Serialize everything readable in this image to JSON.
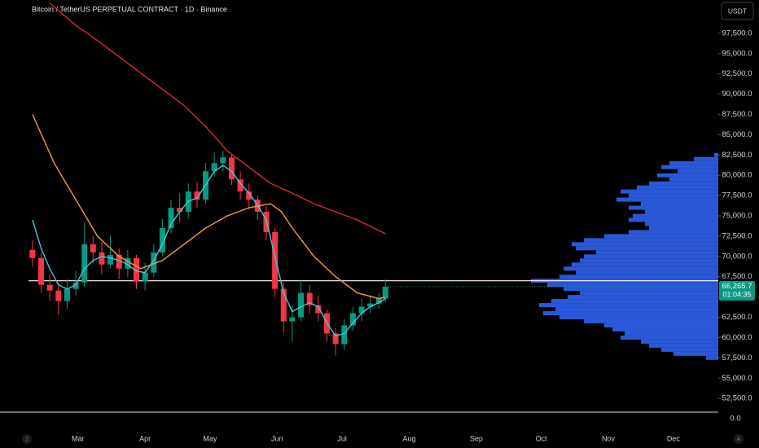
{
  "chart_data": {
    "type": "candlestick",
    "title": "Bitcoin / TetherUS PERPETUAL CONTRACT · 1D · Binance",
    "currency_button": "USDT",
    "left_button": "Z",
    "right_button": "A",
    "axis_floor_label": "0.0",
    "countdown": "01:04:35",
    "price_label": {
      "value": 66265.7,
      "label": "66,265.7"
    },
    "xlim": [
      25,
      356
    ],
    "ylim": [
      48400,
      101600
    ],
    "xticks": [
      {
        "value": 61,
        "label": "Mar"
      },
      {
        "value": 92,
        "label": "Apr"
      },
      {
        "value": 122,
        "label": "May"
      },
      {
        "value": 153,
        "label": "Jun"
      },
      {
        "value": 183,
        "label": "Jul"
      },
      {
        "value": 214,
        "label": "Aug"
      },
      {
        "value": 245,
        "label": "Sep"
      },
      {
        "value": 275,
        "label": "Oct"
      },
      {
        "value": 306,
        "label": "Nov"
      },
      {
        "value": 336,
        "label": "Dec"
      }
    ],
    "yticks": [
      {
        "value": 52500,
        "label": "52,500.0"
      },
      {
        "value": 55000,
        "label": "55,000.0"
      },
      {
        "value": 57500,
        "label": "57,500.0"
      },
      {
        "value": 60000,
        "label": "60,000.0"
      },
      {
        "value": 62500,
        "label": "62,500.0"
      },
      {
        "value": 65000,
        "label": "65,000.0"
      },
      {
        "value": 67500,
        "label": "67,500.0"
      },
      {
        "value": 70000,
        "label": "70,000.0"
      },
      {
        "value": 72500,
        "label": "72,500.0"
      },
      {
        "value": 75000,
        "label": "75,000.0"
      },
      {
        "value": 77500,
        "label": "77,500.0"
      },
      {
        "value": 80000,
        "label": "80,000.0"
      },
      {
        "value": 82500,
        "label": "82,500.0"
      },
      {
        "value": 85000,
        "label": "85,000.0"
      },
      {
        "value": 87500,
        "label": "87,500.0"
      },
      {
        "value": 90000,
        "label": "90,000.0"
      },
      {
        "value": 92500,
        "label": "92,500.0"
      },
      {
        "value": 95000,
        "label": "95,000.0"
      },
      {
        "value": 97500,
        "label": "97,500.0"
      }
    ],
    "up_color": "#089981",
    "down_color": "#f23645",
    "x": [
      40,
      44,
      48,
      52,
      56,
      60,
      64,
      68,
      72,
      76,
      80,
      84,
      88,
      92,
      96,
      100,
      104,
      108,
      112,
      116,
      120,
      124,
      128,
      132,
      136,
      140,
      144,
      148,
      152,
      156,
      160,
      164,
      168,
      172,
      176,
      180,
      184,
      188,
      192,
      196,
      200,
      203
    ],
    "open": [
      70800,
      69800,
      66500,
      65800,
      64500,
      66000,
      66800,
      71500,
      70500,
      69000,
      70200,
      68500,
      69800,
      66900,
      68000,
      70500,
      73500,
      76000,
      75500,
      78000,
      77000,
      80500,
      81500,
      82200,
      79500,
      78000,
      77000,
      75500,
      73000,
      66000,
      62000,
      62500,
      65500,
      64000,
      63000,
      60500,
      59200,
      61500,
      63000,
      63800,
      64200,
      64800
    ],
    "high": [
      72000,
      70500,
      67800,
      66800,
      67200,
      68200,
      74200,
      72500,
      71800,
      72600,
      71000,
      70800,
      70200,
      69200,
      71500,
      74600,
      77000,
      77800,
      79000,
      79200,
      81500,
      82800,
      83000,
      82600,
      80500,
      79000,
      77500,
      76200,
      73500,
      66800,
      64000,
      67000,
      66500,
      65200,
      63500,
      61200,
      62300,
      63800,
      64800,
      65200,
      65500,
      67200
    ],
    "low": [
      68800,
      65500,
      64500,
      62800,
      63500,
      65200,
      66200,
      69200,
      67800,
      68500,
      67200,
      67500,
      66000,
      65800,
      67500,
      70000,
      72800,
      74200,
      74800,
      76000,
      76500,
      79800,
      80500,
      78800,
      77000,
      75800,
      74500,
      72000,
      65000,
      60500,
      59500,
      62000,
      63000,
      62000,
      59500,
      57800,
      58500,
      60800,
      62000,
      63000,
      63500,
      64300
    ],
    "close": [
      69800,
      66500,
      65800,
      64500,
      66000,
      66800,
      71500,
      70500,
      69000,
      70200,
      68500,
      69800,
      66900,
      68000,
      70500,
      73500,
      76000,
      75500,
      78000,
      77000,
      80500,
      81500,
      82200,
      79500,
      78000,
      77000,
      75500,
      73000,
      66000,
      62000,
      62500,
      65500,
      64000,
      63000,
      60500,
      59200,
      61500,
      63000,
      63800,
      64200,
      64800,
      66265.7
    ],
    "moving_averages": [
      {
        "color": "#d32f2f",
        "x": [
          48,
          60,
          70,
          80,
          90,
          100,
          110,
          120,
          130,
          140,
          150,
          160,
          170,
          180,
          190,
          203
        ],
        "values": [
          101200,
          98500,
          96600,
          94600,
          92600,
          90600,
          88600,
          86000,
          83000,
          81000,
          79000,
          77800,
          76500,
          75500,
          74500,
          72800
        ]
      },
      {
        "color": "#f59c3c",
        "x": [
          40,
          50,
          60,
          70,
          80,
          90,
          100,
          110,
          120,
          130,
          140,
          150,
          155,
          160,
          170,
          180,
          190,
          200,
          203
        ],
        "values": [
          87500,
          81500,
          77000,
          72500,
          70000,
          68500,
          69500,
          71500,
          73500,
          75000,
          76000,
          76500,
          75500,
          73500,
          70000,
          67500,
          65500,
          64800,
          65000
        ]
      },
      {
        "color": "#4fc3d9",
        "x": [
          40,
          44,
          48,
          52,
          56,
          60,
          64,
          68,
          72,
          76,
          80,
          84,
          88,
          92,
          96,
          100,
          104,
          108,
          112,
          116,
          120,
          124,
          128,
          132,
          136,
          140,
          144,
          148,
          152,
          156,
          160,
          164,
          168,
          172,
          176,
          180,
          184,
          188,
          192,
          196,
          200,
          203
        ],
        "values": [
          74500,
          71000,
          68500,
          66500,
          66000,
          66500,
          68500,
          69500,
          70000,
          69800,
          69500,
          69000,
          68200,
          68000,
          69500,
          71500,
          74000,
          75500,
          76800,
          77200,
          78800,
          80500,
          81200,
          80500,
          79000,
          77800,
          76300,
          74500,
          70000,
          65500,
          63200,
          63800,
          64300,
          63800,
          61800,
          60200,
          60500,
          61800,
          63000,
          63800,
          64300,
          64800
        ]
      }
    ],
    "horizontal_level": 67000,
    "volume_profile": {
      "color": "#2f62f0",
      "levels": [
        82500,
        82000,
        81500,
        81000,
        80500,
        80000,
        79500,
        79000,
        78500,
        78000,
        77500,
        77000,
        76500,
        76000,
        75500,
        75000,
        74500,
        74000,
        73500,
        73000,
        72500,
        72000,
        71500,
        71000,
        70500,
        70000,
        69500,
        69000,
        68500,
        68000,
        67500,
        67000,
        66500,
        66000,
        65500,
        65000,
        64500,
        64000,
        63500,
        63000,
        62500,
        62000,
        61500,
        61000,
        60500,
        60000,
        59500,
        59000,
        58500,
        58000,
        57500
      ],
      "volumes": [
        5,
        30,
        60,
        70,
        50,
        75,
        60,
        85,
        100,
        120,
        110,
        125,
        95,
        110,
        90,
        105,
        110,
        90,
        85,
        110,
        140,
        165,
        180,
        175,
        150,
        165,
        170,
        180,
        190,
        175,
        195,
        230,
        210,
        190,
        170,
        185,
        205,
        220,
        200,
        215,
        195,
        165,
        140,
        130,
        115,
        120,
        95,
        85,
        70,
        55,
        15
      ]
    }
  }
}
